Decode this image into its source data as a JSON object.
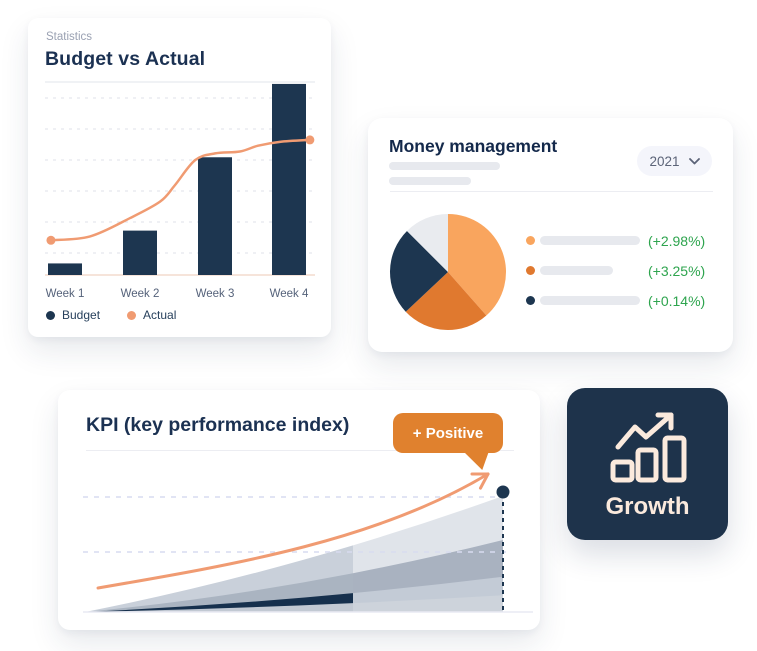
{
  "colors": {
    "navy": "#1D3650",
    "navy_card": "#1E334B",
    "heading_navy": "#1B3152",
    "salmon": "#F09B72",
    "light_orange": "#F9A55E",
    "dark_orange": "#E0792F",
    "badge_orange": "#E0812E",
    "green": "#2EA44E",
    "cream": "#FBEADD",
    "grid_dash": "#E5E8EE",
    "axis_top": "#E2E5EB",
    "baseline_pink": "#F3DCCD",
    "lavender_dash": "#D7DBF0",
    "kpi_baseline": "#E9EAF3",
    "placeholder_gray": "#E7E9EE",
    "pill_bg": "#F4F5FB",
    "label_gray": "#55627A",
    "eyebrow_gray": "#9AA1B2",
    "pie_gray": "#E9EBEF"
  },
  "budget_card": {
    "eyebrow": "Statistics",
    "title": "Budget vs Actual"
  },
  "money_card": {
    "title": "Money management",
    "year": "2021"
  },
  "kpi_card": {
    "title": "KPI (key performance index)",
    "badge_label": "+ Positive"
  },
  "growth_card": {
    "label": "Growth"
  },
  "chart_data": [
    {
      "id": "budget-vs-actual",
      "type": "bar",
      "title": "Budget vs Actual",
      "categories": [
        "Week 1",
        "Week 2",
        "Week 3",
        "Week 4"
      ],
      "ylim": [
        0,
        100
      ],
      "grid": "horizontal-dashed",
      "legend_position": "bottom",
      "series": [
        {
          "name": "Budget",
          "type": "bar",
          "color_key": "navy",
          "values": [
            6,
            23,
            61,
            99
          ]
        },
        {
          "name": "Actual",
          "type": "line",
          "color_key": "salmon",
          "markers": "first-last",
          "points": [
            [
              0.022,
              18
            ],
            [
              0.167,
              20
            ],
            [
              0.315,
              29.5
            ],
            [
              0.426,
              38
            ],
            [
              0.481,
              46.5
            ],
            [
              0.556,
              59.5
            ],
            [
              0.63,
              63
            ],
            [
              0.722,
              64
            ],
            [
              0.789,
              67
            ],
            [
              0.87,
              69
            ],
            [
              0.981,
              70
            ]
          ]
        }
      ]
    },
    {
      "id": "money-breakdown",
      "type": "pie",
      "start_angle_deg": -90,
      "direction": "clockwise",
      "legend_position": "right",
      "slices": [
        {
          "label": "segment-1",
          "value": 38.5,
          "color": "#F9A55E",
          "change": "(+2.98%)"
        },
        {
          "label": "segment-2",
          "value": 24.5,
          "color": "#E0792F",
          "change": "(+3.25%)"
        },
        {
          "label": "segment-3",
          "value": 24.5,
          "color": "#1D3650",
          "change": "(+0.14%)"
        },
        {
          "label": "segment-4",
          "value": 12.5,
          "color": "#E9EBEF",
          "change": ""
        }
      ]
    },
    {
      "id": "kpi-trend",
      "type": "area",
      "grid": "horizontal-dashed",
      "x_range": [
        0,
        1
      ],
      "highlight_from_x": 0.64,
      "layers": [
        {
          "name": "outer",
          "end": 0.725,
          "mid": 0.31,
          "color": "#C9D0DA",
          "faded_color": "#E0E4EA"
        },
        {
          "name": "middle",
          "end": 0.45,
          "mid": 0.175,
          "color": "#AAB4C1",
          "faded_color": "#A9B2C0"
        },
        {
          "name": "core",
          "end": 0.22,
          "mid": 0.085,
          "color": "#16304D",
          "faded_color": "#C3CBD6"
        },
        {
          "name": "base",
          "end": 0.105,
          "mid": 0.04,
          "color": "#C2C9D3",
          "faded_color": "#CDD3DB"
        }
      ],
      "trend_line": {
        "color_key": "salmon",
        "style": "curved-arrow",
        "from": [
          0.03,
          0.15
        ],
        "to": [
          0.9,
          0.86
        ]
      },
      "marker_point": {
        "x": 0.93,
        "y": 0.75
      }
    }
  ]
}
